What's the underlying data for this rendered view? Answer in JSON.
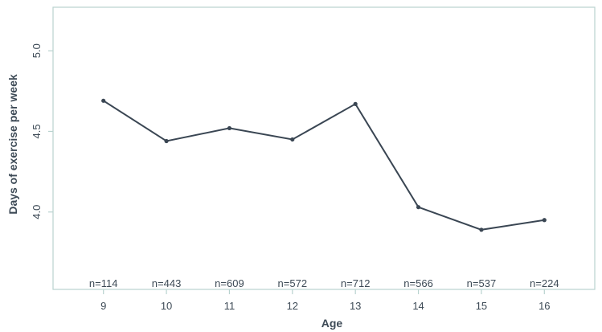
{
  "chart_data": {
    "type": "line",
    "xlabel": "Age",
    "ylabel": "Days of exercise per week",
    "x": [
      9,
      10,
      11,
      12,
      13,
      14,
      15,
      16
    ],
    "series": [
      {
        "values": [
          4.69,
          4.44,
          4.52,
          4.45,
          4.67,
          4.03,
          3.89,
          3.95
        ]
      }
    ],
    "xlim": [
      8.2,
      16.8
    ],
    "ylim": [
      3.52,
      5.27
    ],
    "yticks": [
      4.0,
      4.5,
      5.0
    ],
    "ytick_labels": [
      "4.0",
      "4.5",
      "5.0"
    ],
    "xtick_labels": [
      "9",
      "10",
      "11",
      "12",
      "13",
      "14",
      "15",
      "16"
    ],
    "sample_labels": [
      "n=114",
      "n=443",
      "n=609",
      "n=572",
      "n=712",
      "n=566",
      "n=537",
      "n=224"
    ],
    "grid": false,
    "legend": "none",
    "colors": {
      "line": "#3a4653",
      "frame": "#b9d3cf",
      "text": "#3d4a56"
    }
  }
}
